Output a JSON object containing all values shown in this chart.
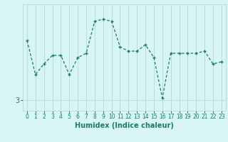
{
  "x": [
    0,
    1,
    2,
    3,
    4,
    5,
    6,
    7,
    8,
    9,
    10,
    11,
    12,
    13,
    14,
    15,
    16,
    17,
    18,
    19,
    20,
    21,
    22,
    23
  ],
  "y": [
    5.8,
    4.2,
    4.7,
    5.1,
    5.1,
    4.2,
    5.0,
    5.2,
    6.7,
    6.8,
    6.7,
    5.5,
    5.3,
    5.3,
    5.6,
    5.0,
    3.1,
    5.2,
    5.2,
    5.2,
    5.2,
    5.3,
    4.7,
    4.8
  ],
  "line_color": "#1a7a6e",
  "marker": "+",
  "background_color": "#d8f5f5",
  "grid_color": "#b8d8d8",
  "ytick_labels": [
    "3"
  ],
  "ytick_values": [
    3
  ],
  "xlabel": "Humidex (Indice chaleur)",
  "ylim": [
    2.5,
    7.5
  ],
  "xlim": [
    -0.5,
    23.5
  ],
  "tick_color": "#1a7a6e",
  "fontsize_xlabel": 7,
  "fontsize_ytick": 7,
  "fontsize_xtick": 5.5
}
